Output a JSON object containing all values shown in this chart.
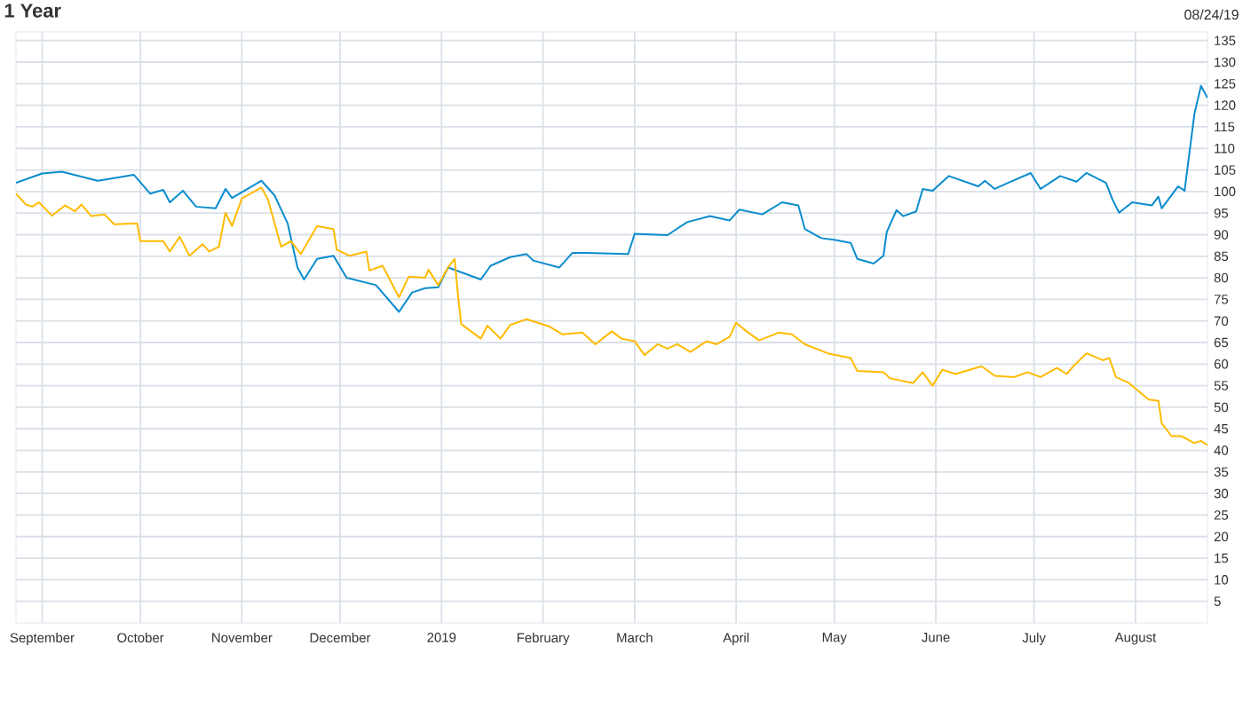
{
  "chart_data": {
    "type": "line",
    "title": "1 Year",
    "annotations": [
      "08/24/19"
    ],
    "xlim": [
      "2018-08-24",
      "2019-08-23"
    ],
    "ylim": [
      0,
      137
    ],
    "xticks": [
      {
        "value": "2018-09-01",
        "label": "September"
      },
      {
        "value": "2018-10-01",
        "label": "October"
      },
      {
        "value": "2018-11-01",
        "label": "November"
      },
      {
        "value": "2018-12-01",
        "label": "December"
      },
      {
        "value": "2019-01-01",
        "label": "2019"
      },
      {
        "value": "2019-02-01",
        "label": "February"
      },
      {
        "value": "2019-03-01",
        "label": "March"
      },
      {
        "value": "2019-04-01",
        "label": "April"
      },
      {
        "value": "2019-05-01",
        "label": "May"
      },
      {
        "value": "2019-06-01",
        "label": "June"
      },
      {
        "value": "2019-07-01",
        "label": "July"
      },
      {
        "value": "2019-08-01",
        "label": "August"
      }
    ],
    "yticks": [
      5,
      10,
      15,
      20,
      25,
      30,
      35,
      40,
      45,
      50,
      55,
      60,
      65,
      70,
      75,
      80,
      85,
      90,
      95,
      100,
      105,
      110,
      115,
      120,
      125,
      130,
      135
    ],
    "grid": true,
    "marker": "none",
    "series": [
      {
        "color": "#0a8ccd",
        "x": [
          "2018-08-24",
          "2018-09-01",
          "2018-09-07",
          "2018-09-18",
          "2018-09-29",
          "2018-10-04",
          "2018-10-08",
          "2018-10-10",
          "2018-10-14",
          "2018-10-18",
          "2018-10-24",
          "2018-10-27",
          "2018-10-29",
          "2018-11-07",
          "2018-11-11",
          "2018-11-15",
          "2018-11-18",
          "2018-11-20",
          "2018-11-24",
          "2018-11-29",
          "2018-12-03",
          "2018-12-12",
          "2018-12-19",
          "2018-12-23",
          "2018-12-27",
          "2018-12-31",
          "2019-01-03",
          "2019-01-13",
          "2019-01-16",
          "2019-01-22",
          "2019-01-27",
          "2019-01-29",
          "2019-02-06",
          "2019-02-10",
          "2019-02-14",
          "2019-02-27",
          "2019-03-01",
          "2019-03-11",
          "2019-03-17",
          "2019-03-24",
          "2019-03-30",
          "2019-04-02",
          "2019-04-09",
          "2019-04-15",
          "2019-04-20",
          "2019-04-22",
          "2019-04-27",
          "2019-05-01",
          "2019-05-06",
          "2019-05-08",
          "2019-05-13",
          "2019-05-16",
          "2019-05-17",
          "2019-05-20",
          "2019-05-22",
          "2019-05-26",
          "2019-05-28",
          "2019-05-31",
          "2019-06-05",
          "2019-06-14",
          "2019-06-16",
          "2019-06-19",
          "2019-06-23",
          "2019-06-30",
          "2019-07-03",
          "2019-07-09",
          "2019-07-14",
          "2019-07-17",
          "2019-07-23",
          "2019-07-25",
          "2019-07-27",
          "2019-07-31",
          "2019-08-06",
          "2019-08-08",
          "2019-08-09",
          "2019-08-14",
          "2019-08-16",
          "2019-08-19",
          "2019-08-21",
          "2019-08-23"
        ],
        "values": [
          102.0,
          104.2,
          104.6,
          102.5,
          103.9,
          99.5,
          100.4,
          97.5,
          100.2,
          96.5,
          96.1,
          100.6,
          98.5,
          102.5,
          99.1,
          92.6,
          82.4,
          79.6,
          84.4,
          85.1,
          80.0,
          78.3,
          72.1,
          76.6,
          77.6,
          77.8,
          82.4,
          79.6,
          82.8,
          84.8,
          85.5,
          84.0,
          82.4,
          85.8,
          85.8,
          85.5,
          90.2,
          89.9,
          92.9,
          94.3,
          93.3,
          95.8,
          94.7,
          97.5,
          96.8,
          91.3,
          89.2,
          88.8,
          88.1,
          84.4,
          83.3,
          85.1,
          90.6,
          95.7,
          94.3,
          95.4,
          100.6,
          100.2,
          103.6,
          101.2,
          102.5,
          100.6,
          102.0,
          104.3,
          100.6,
          103.6,
          102.3,
          104.3,
          102.0,
          98.1,
          95.1,
          97.5,
          96.8,
          98.8,
          96.1,
          101.2,
          100.2,
          118.0,
          124.5,
          121.7
        ]
      },
      {
        "color": "#ffbb00",
        "x": [
          "2018-08-24",
          "2018-08-27",
          "2018-08-29",
          "2018-08-31",
          "2018-09-04",
          "2018-09-08",
          "2018-09-11",
          "2018-09-13",
          "2018-09-16",
          "2018-09-20",
          "2018-09-23",
          "2018-09-30",
          "2018-10-01",
          "2018-10-08",
          "2018-10-10",
          "2018-10-13",
          "2018-10-16",
          "2018-10-20",
          "2018-10-22",
          "2018-10-25",
          "2018-10-27",
          "2018-10-29",
          "2018-11-01",
          "2018-11-07",
          "2018-11-09",
          "2018-11-13",
          "2018-11-16",
          "2018-11-19",
          "2018-11-24",
          "2018-11-29",
          "2018-11-30",
          "2018-12-04",
          "2018-12-09",
          "2018-12-10",
          "2018-12-14",
          "2018-12-19",
          "2018-12-22",
          "2018-12-27",
          "2018-12-28",
          "2018-12-31",
          "2019-01-03",
          "2019-01-05",
          "2019-01-06",
          "2019-01-07",
          "2019-01-13",
          "2019-01-15",
          "2019-01-19",
          "2019-01-22",
          "2019-01-27",
          "2019-02-03",
          "2019-02-07",
          "2019-02-13",
          "2019-02-17",
          "2019-02-22",
          "2019-02-25",
          "2019-03-01",
          "2019-03-04",
          "2019-03-08",
          "2019-03-11",
          "2019-03-14",
          "2019-03-18",
          "2019-03-23",
          "2019-03-26",
          "2019-03-30",
          "2019-04-01",
          "2019-04-04",
          "2019-04-08",
          "2019-04-14",
          "2019-04-18",
          "2019-04-22",
          "2019-04-29",
          "2019-05-06",
          "2019-05-08",
          "2019-05-16",
          "2019-05-18",
          "2019-05-25",
          "2019-05-28",
          "2019-05-31",
          "2019-06-03",
          "2019-06-07",
          "2019-06-15",
          "2019-06-19",
          "2019-06-25",
          "2019-06-29",
          "2019-07-03",
          "2019-07-08",
          "2019-07-11",
          "2019-07-13",
          "2019-07-17",
          "2019-07-22",
          "2019-07-24",
          "2019-07-26",
          "2019-07-30",
          "2019-08-05",
          "2019-08-08",
          "2019-08-09",
          "2019-08-12",
          "2019-08-15",
          "2019-08-19",
          "2019-08-21",
          "2019-08-23"
        ],
        "values": [
          99.5,
          97.0,
          96.5,
          97.5,
          94.4,
          96.8,
          95.4,
          97.0,
          94.3,
          94.7,
          92.4,
          92.6,
          88.5,
          88.5,
          86.1,
          89.5,
          85.1,
          87.8,
          86.1,
          87.2,
          95.1,
          92.0,
          98.4,
          100.9,
          98.1,
          87.2,
          88.5,
          85.5,
          92.0,
          91.3,
          86.5,
          85.1,
          86.1,
          81.7,
          82.8,
          75.5,
          80.3,
          80.0,
          81.9,
          78.3,
          82.4,
          84.4,
          76.2,
          69.3,
          65.9,
          68.9,
          65.9,
          69.1,
          70.4,
          68.7,
          66.9,
          67.3,
          64.6,
          67.6,
          65.9,
          65.3,
          62.1,
          64.6,
          63.6,
          64.6,
          62.8,
          65.3,
          64.6,
          66.3,
          69.6,
          67.7,
          65.5,
          67.3,
          66.9,
          64.6,
          62.5,
          61.4,
          58.4,
          58.1,
          56.7,
          55.6,
          58.1,
          55.0,
          58.7,
          57.7,
          59.5,
          57.3,
          57.0,
          58.1,
          57.0,
          59.1,
          57.7,
          59.5,
          62.5,
          60.9,
          61.4,
          57.0,
          55.6,
          51.8,
          51.5,
          46.3,
          43.3,
          43.3,
          41.7,
          42.2,
          41.2
        ]
      }
    ]
  }
}
